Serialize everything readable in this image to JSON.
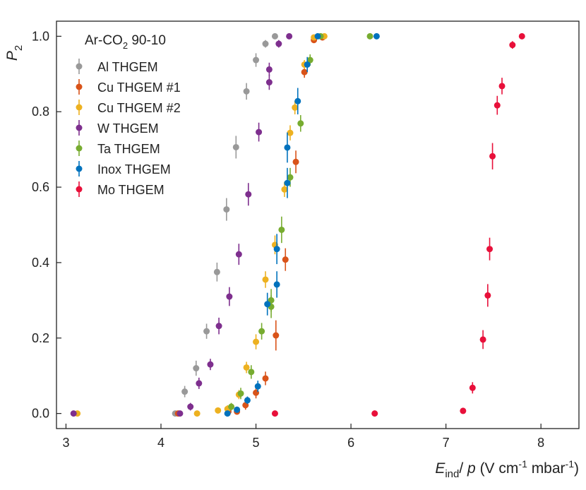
{
  "chart_data": {
    "type": "scatter",
    "title": "Ar-CO2 90-10",
    "title_main": "Ar-CO",
    "title_sub": "2",
    "title_tail": " 90-10",
    "xlabel": "E_ind/ p (V cm^-1 mbar^-1)",
    "xlabel_parts": {
      "E": "E",
      "ind": "ind",
      "mid": "/ ",
      "p": "p",
      "unit_a": " (V cm",
      "exp1": "-1",
      "unit_b": " mbar",
      "exp2": "-1",
      "close": ")"
    },
    "ylabel": "P2",
    "ylabel_parts": {
      "P": "P",
      "sub": "2"
    },
    "xlim": [
      2.9,
      8.4
    ],
    "ylim": [
      -0.04,
      1.04
    ],
    "xticks": [
      3,
      4,
      5,
      6,
      7,
      8
    ],
    "xtick_labels": [
      "3",
      "4",
      "5",
      "6",
      "7",
      "8"
    ],
    "yticks": [
      0.0,
      0.2,
      0.4,
      0.6,
      0.8,
      1.0
    ],
    "ytick_labels": [
      "0.0",
      "0.2",
      "0.4",
      "0.6",
      "0.8",
      "1.0"
    ],
    "legend_position": "top-left",
    "series": [
      {
        "name": "Al THGEM",
        "key": "al",
        "color": "#999999",
        "points": [
          [
            4.15,
            0.0,
            0.005
          ],
          [
            4.25,
            0.058,
            0.015
          ],
          [
            4.37,
            0.12,
            0.02
          ],
          [
            4.48,
            0.218,
            0.02
          ],
          [
            4.59,
            0.375,
            0.025
          ],
          [
            4.69,
            0.541,
            0.03
          ],
          [
            4.79,
            0.706,
            0.03
          ],
          [
            4.9,
            0.854,
            0.022
          ],
          [
            5.0,
            0.937,
            0.018
          ],
          [
            5.1,
            0.98,
            0.01
          ],
          [
            5.2,
            1.0,
            0.005
          ]
        ]
      },
      {
        "name": "Cu THGEM #1",
        "key": "cu1",
        "color": "#d95319",
        "points": [
          [
            4.18,
            0.0,
            0.005
          ],
          [
            4.71,
            0.005,
            0.008
          ],
          [
            4.8,
            0.005,
            0.008
          ],
          [
            4.89,
            0.022,
            0.012
          ],
          [
            5.0,
            0.055,
            0.015
          ],
          [
            5.1,
            0.093,
            0.018
          ],
          [
            5.21,
            0.207,
            0.04
          ],
          [
            5.31,
            0.408,
            0.03
          ],
          [
            5.42,
            0.667,
            0.03
          ],
          [
            5.51,
            0.905,
            0.015
          ],
          [
            5.61,
            0.99,
            0.008
          ],
          [
            5.7,
            0.997,
            0.005
          ]
        ]
      },
      {
        "name": "Cu THGEM #2",
        "key": "cu2",
        "color": "#edb120",
        "points": [
          [
            3.12,
            0.0,
            0.005
          ],
          [
            4.38,
            0.0,
            0.005
          ],
          [
            4.6,
            0.008,
            0.008
          ],
          [
            4.7,
            0.012,
            0.01
          ],
          [
            4.82,
            0.05,
            0.012
          ],
          [
            4.9,
            0.122,
            0.015
          ],
          [
            5.0,
            0.19,
            0.02
          ],
          [
            5.1,
            0.355,
            0.022
          ],
          [
            5.2,
            0.447,
            0.025
          ],
          [
            5.3,
            0.594,
            0.02
          ],
          [
            5.36,
            0.744,
            0.02
          ],
          [
            5.41,
            0.811,
            0.018
          ],
          [
            5.51,
            0.925,
            0.012
          ],
          [
            5.61,
            0.997,
            0.005
          ],
          [
            5.72,
            1.0,
            0.005
          ]
        ]
      },
      {
        "name": "W THGEM",
        "key": "w",
        "color": "#7e2f8e",
        "points": [
          [
            3.08,
            0.0,
            0.005
          ],
          [
            4.2,
            0.0,
            0.005
          ],
          [
            4.31,
            0.018,
            0.01
          ],
          [
            4.4,
            0.08,
            0.015
          ],
          [
            4.52,
            0.13,
            0.015
          ],
          [
            4.61,
            0.232,
            0.022
          ],
          [
            4.72,
            0.31,
            0.025
          ],
          [
            4.82,
            0.422,
            0.028
          ],
          [
            4.92,
            0.581,
            0.03
          ],
          [
            5.03,
            0.746,
            0.025
          ],
          [
            5.14,
            0.878,
            0.02
          ],
          [
            5.14,
            0.912,
            0.018
          ],
          [
            5.24,
            0.98,
            0.01
          ],
          [
            5.35,
            1.0,
            0.005
          ]
        ]
      },
      {
        "name": "Ta THGEM",
        "key": "ta",
        "color": "#77ac30",
        "points": [
          [
            4.74,
            0.018,
            0.01
          ],
          [
            4.84,
            0.053,
            0.015
          ],
          [
            4.95,
            0.11,
            0.018
          ],
          [
            5.06,
            0.218,
            0.022
          ],
          [
            5.16,
            0.283,
            0.03
          ],
          [
            5.16,
            0.3,
            0.03
          ],
          [
            5.27,
            0.487,
            0.035
          ],
          [
            5.36,
            0.626,
            0.025
          ],
          [
            5.47,
            0.769,
            0.022
          ],
          [
            5.57,
            0.937,
            0.015
          ],
          [
            5.68,
            1.0,
            0.005
          ],
          [
            6.2,
            1.0,
            0.005
          ]
        ]
      },
      {
        "name": "Inox THGEM",
        "key": "inox",
        "color": "#0072bd",
        "points": [
          [
            4.7,
            0.0,
            0.005
          ],
          [
            4.8,
            0.01,
            0.008
          ],
          [
            4.91,
            0.035,
            0.01
          ],
          [
            5.02,
            0.072,
            0.015
          ],
          [
            5.12,
            0.29,
            0.03
          ],
          [
            5.22,
            0.342,
            0.035
          ],
          [
            5.22,
            0.436,
            0.04
          ],
          [
            5.33,
            0.611,
            0.04
          ],
          [
            5.33,
            0.705,
            0.04
          ],
          [
            5.44,
            0.828,
            0.035
          ],
          [
            5.54,
            0.925,
            0.02
          ],
          [
            5.65,
            1.0,
            0.005
          ],
          [
            6.27,
            1.0,
            0.005
          ]
        ]
      },
      {
        "name": "Mo THGEM",
        "key": "mo",
        "color": "#e8103a",
        "points": [
          [
            5.2,
            0.0,
            0.005
          ],
          [
            6.25,
            0.0,
            0.005
          ],
          [
            7.18,
            0.007,
            0.008
          ],
          [
            7.28,
            0.068,
            0.015
          ],
          [
            7.39,
            0.196,
            0.025
          ],
          [
            7.44,
            0.313,
            0.03
          ],
          [
            7.46,
            0.436,
            0.03
          ],
          [
            7.49,
            0.682,
            0.035
          ],
          [
            7.54,
            0.817,
            0.025
          ],
          [
            7.59,
            0.868,
            0.022
          ],
          [
            7.7,
            0.977,
            0.01
          ],
          [
            7.8,
            1.0,
            0.005
          ]
        ]
      }
    ]
  }
}
